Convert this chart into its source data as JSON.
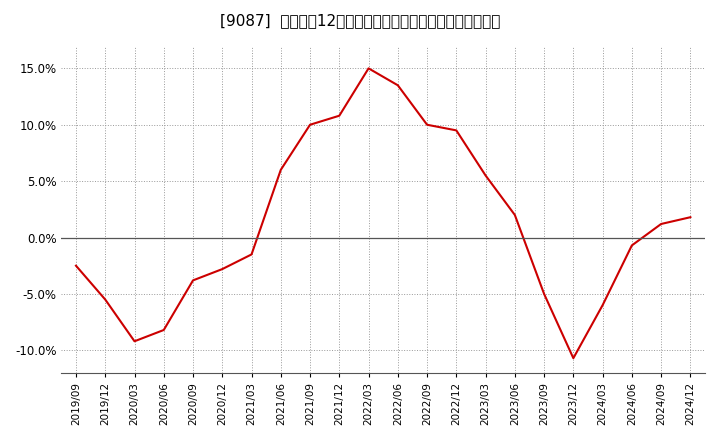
{
  "title": "[9087]  売上高の12か月移動合計の対前年同期増減率の推移",
  "x_labels": [
    "2019/09",
    "2019/12",
    "2020/03",
    "2020/06",
    "2020/09",
    "2020/12",
    "2021/03",
    "2021/06",
    "2021/09",
    "2021/12",
    "2022/03",
    "2022/06",
    "2022/09",
    "2022/12",
    "2023/03",
    "2023/06",
    "2023/09",
    "2023/12",
    "2024/03",
    "2024/06",
    "2024/09",
    "2024/12"
  ],
  "values": [
    -0.025,
    -0.055,
    -0.092,
    -0.082,
    -0.038,
    -0.028,
    -0.015,
    0.06,
    0.1,
    0.108,
    0.15,
    0.135,
    0.1,
    0.095,
    0.055,
    0.02,
    -0.05,
    -0.107,
    -0.06,
    -0.007,
    0.012,
    0.018
  ],
  "line_color": "#cc0000",
  "line_width": 1.5,
  "ylim": [
    -0.12,
    0.17
  ],
  "yticks": [
    -0.1,
    -0.05,
    0.0,
    0.05,
    0.1,
    0.15
  ],
  "background_color": "#ffffff",
  "plot_bg_color": "#ffffff",
  "grid_color": "#999999",
  "title_fontsize": 11,
  "zero_line_color": "#555555"
}
